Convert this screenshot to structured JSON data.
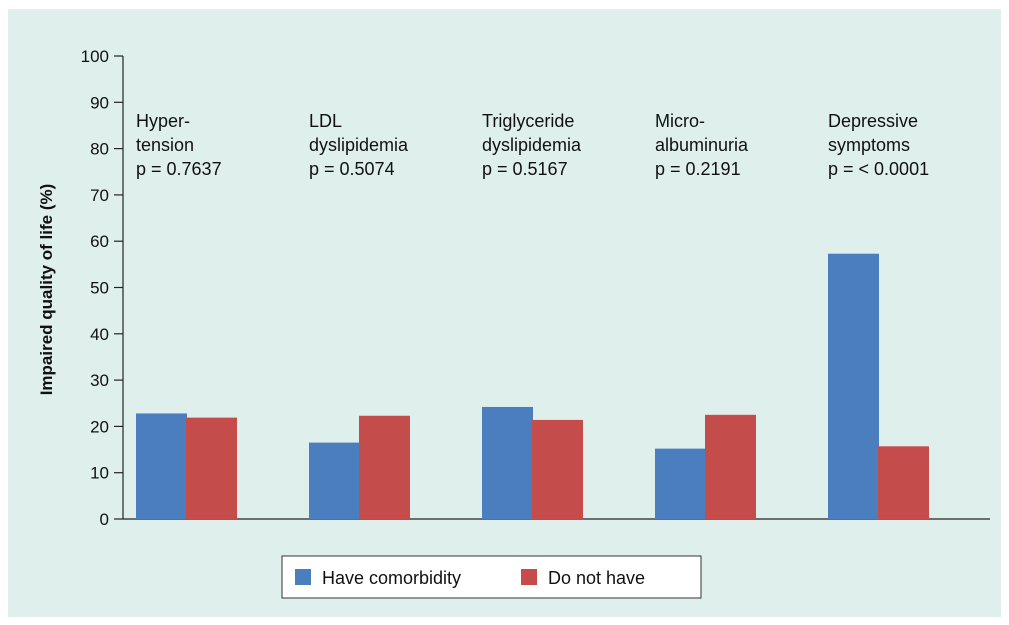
{
  "chart_data": {
    "type": "bar",
    "ylabel": "Impaired quality of life (%)",
    "xlabel": "",
    "ylim": [
      0,
      100
    ],
    "yticks": [
      "0",
      "10",
      "20",
      "30",
      "40",
      "50",
      "60",
      "70",
      "80",
      "90",
      "100"
    ],
    "categories": [
      "Hypertension",
      "LDL dyslipidemia",
      "Triglyceride dyslipidemia",
      "Microalbuminuria",
      "Depressive symptoms"
    ],
    "annotations": [
      {
        "lines": [
          "Hyper-",
          "tension",
          "p = 0.7637"
        ]
      },
      {
        "lines": [
          "LDL",
          "dyslipidemia",
          "p = 0.5074"
        ]
      },
      {
        "lines": [
          "Triglyceride",
          "dyslipidemia",
          "p = 0.5167"
        ]
      },
      {
        "lines": [
          "Micro-",
          "albuminuria",
          "p = 0.2191"
        ]
      },
      {
        "lines": [
          "Depressive",
          "symptoms",
          "p = < 0.0001"
        ]
      }
    ],
    "series": [
      {
        "name": "Have comorbidity",
        "color": "#4a7ebf",
        "values": [
          22.8,
          16.5,
          24.2,
          15.2,
          57.3
        ]
      },
      {
        "name": "Do not have",
        "color": "#c44d4c",
        "values": [
          21.9,
          22.3,
          21.4,
          22.5,
          15.7
        ]
      }
    ],
    "legend_position": "bottom-center",
    "grid": false
  }
}
